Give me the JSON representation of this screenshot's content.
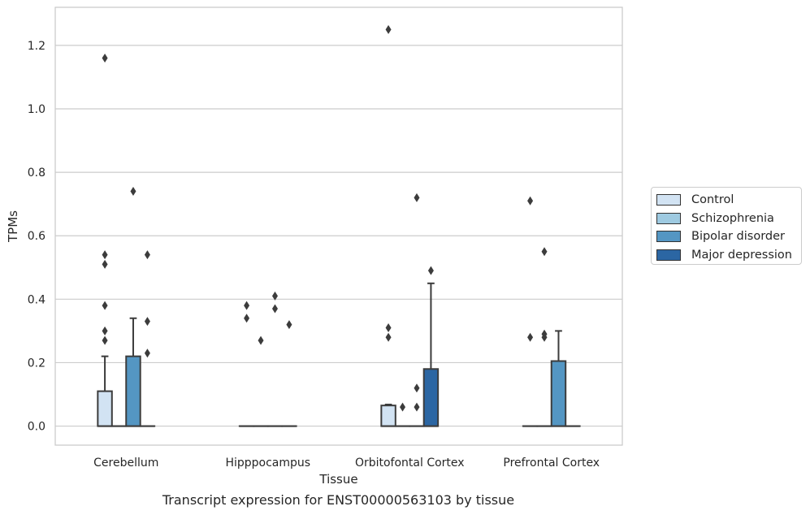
{
  "chart_data": {
    "type": "box",
    "title": "",
    "caption": "Transcript expression for ENST00000563103 by tissue",
    "xlabel": "Tissue",
    "ylabel": "TPMs",
    "ylim": [
      -0.06,
      1.32
    ],
    "yticks": [
      0.0,
      0.2,
      0.4,
      0.6,
      0.8,
      1.0,
      1.2
    ],
    "ytick_labels": [
      "0.0",
      "0.2",
      "0.4",
      "0.6",
      "0.8",
      "1.0",
      "1.2"
    ],
    "grid": "horizontal",
    "legend_position": "outside-right",
    "categories": [
      "Cerebellum",
      "Hipppocampus",
      "Orbitofontal Cortex",
      "Prefrontal Cortex"
    ],
    "series": [
      {
        "name": "Control",
        "color": "#d2e3f3",
        "boxes": [
          {
            "q1": 0,
            "median": 0,
            "q3": 0.11,
            "whisker_low": 0,
            "whisker_high": 0.22,
            "outliers": [
              0.54,
              0.51,
              0.38,
              0.3,
              0.27,
              1.16
            ]
          },
          {
            "q1": 0,
            "median": 0,
            "q3": 0,
            "whisker_low": 0,
            "whisker_high": 0,
            "outliers": [
              0.38,
              0.34
            ]
          },
          {
            "q1": 0,
            "median": 0,
            "q3": 0.065,
            "whisker_low": 0,
            "whisker_high": 0.068,
            "outliers": [
              1.25,
              0.31,
              0.28
            ]
          },
          {
            "q1": 0,
            "median": 0,
            "q3": 0,
            "whisker_low": 0,
            "whisker_high": 0,
            "outliers": [
              0.71,
              0.28
            ]
          }
        ]
      },
      {
        "name": "Schizophrenia",
        "color": "#9ecae1",
        "boxes": [
          {
            "q1": 0,
            "median": 0,
            "q3": 0,
            "whisker_low": 0,
            "whisker_high": 0,
            "outliers": []
          },
          {
            "q1": 0,
            "median": 0,
            "q3": 0,
            "whisker_low": 0,
            "whisker_high": 0,
            "outliers": [
              0.27
            ]
          },
          {
            "q1": 0,
            "median": 0,
            "q3": 0,
            "whisker_low": 0,
            "whisker_high": 0,
            "outliers": [
              0.06
            ]
          },
          {
            "q1": 0,
            "median": 0,
            "q3": 0,
            "whisker_low": 0,
            "whisker_high": 0,
            "outliers": [
              0.55,
              0.29,
              0.28
            ]
          }
        ]
      },
      {
        "name": "Bipolar disorder",
        "color": "#5496c3",
        "boxes": [
          {
            "q1": 0,
            "median": 0,
            "q3": 0.22,
            "whisker_low": 0,
            "whisker_high": 0.34,
            "outliers": [
              0.74
            ]
          },
          {
            "q1": 0,
            "median": 0,
            "q3": 0,
            "whisker_low": 0,
            "whisker_high": 0,
            "outliers": [
              0.41,
              0.37
            ]
          },
          {
            "q1": 0,
            "median": 0,
            "q3": 0,
            "whisker_low": 0,
            "whisker_high": 0,
            "outliers": [
              0.72,
              0.12,
              0.06
            ]
          },
          {
            "q1": 0,
            "median": 0,
            "q3": 0.205,
            "whisker_low": 0,
            "whisker_high": 0.3,
            "outliers": []
          }
        ]
      },
      {
        "name": "Major depression",
        "color": "#2b66a3",
        "boxes": [
          {
            "q1": 0,
            "median": 0,
            "q3": 0,
            "whisker_low": 0,
            "whisker_high": 0,
            "outliers": [
              0.54,
              0.33,
              0.23
            ]
          },
          {
            "q1": 0,
            "median": 0,
            "q3": 0,
            "whisker_low": 0,
            "whisker_high": 0,
            "outliers": [
              0.32
            ]
          },
          {
            "q1": 0,
            "median": 0,
            "q3": 0.18,
            "whisker_low": 0,
            "whisker_high": 0.45,
            "outliers": [
              0.49
            ]
          },
          {
            "q1": 0,
            "median": 0,
            "q3": 0,
            "whisker_low": 0,
            "whisker_high": 0,
            "outliers": []
          }
        ]
      }
    ]
  }
}
